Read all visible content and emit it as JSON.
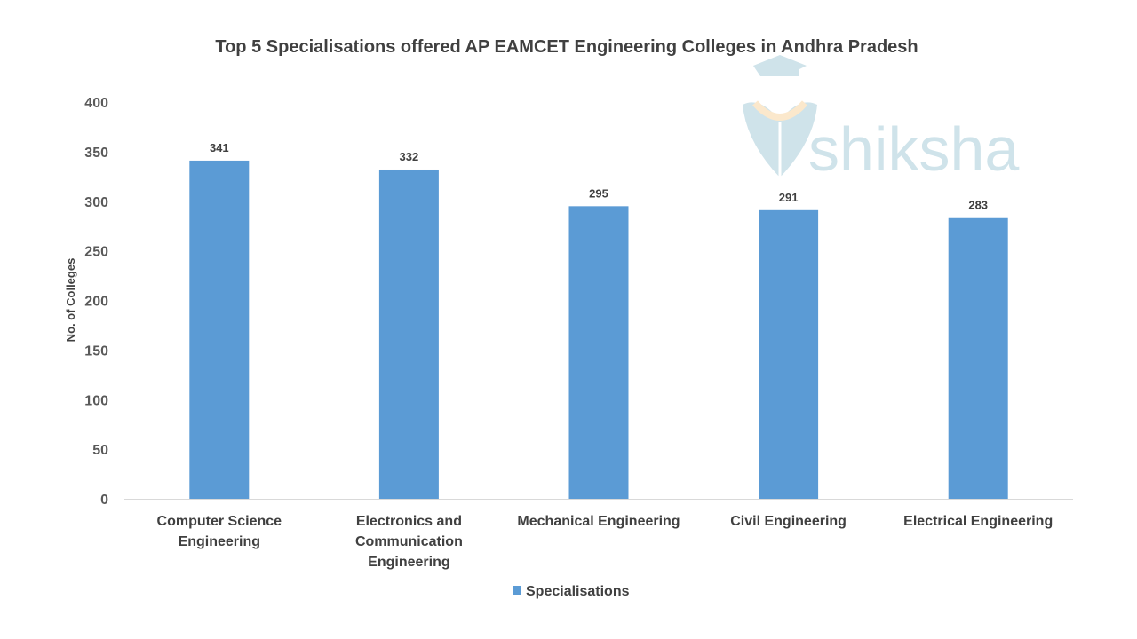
{
  "chart_data": {
    "type": "bar",
    "title": "Top 5 Specialisations offered AP EAMCET Engineering Colleges in Andhra Pradesh",
    "xlabel": "",
    "ylabel": "No. of Colleges",
    "ylim": [
      0,
      400
    ],
    "yticks": [
      0,
      50,
      100,
      150,
      200,
      250,
      300,
      350,
      400
    ],
    "grid": false,
    "categories": [
      [
        "Computer Science",
        "Engineering"
      ],
      [
        "Electronics and",
        "Communication",
        "Engineering"
      ],
      [
        "Mechanical Engineering"
      ],
      [
        "Civil Engineering"
      ],
      [
        "Electrical Engineering"
      ]
    ],
    "series": [
      {
        "name": "Specialisations",
        "values": [
          341,
          332,
          295,
          291,
          283
        ],
        "color": "#5B9BD5"
      }
    ],
    "legend": {
      "position": "bottom",
      "entries": [
        "Specialisations"
      ]
    },
    "watermark": "shiksha"
  }
}
